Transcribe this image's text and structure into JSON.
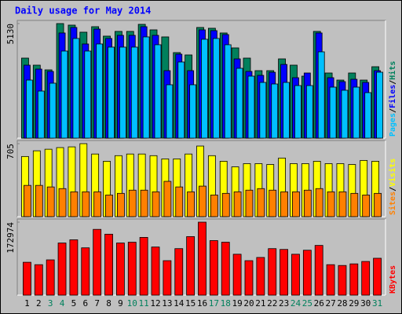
{
  "chart_data": [
    {
      "type": "bar",
      "title": "Daily usage for May 2014",
      "ylim": [
        0,
        5130
      ],
      "yticks": [
        5130
      ],
      "legend_separator": "/",
      "series": [
        {
          "name": "Hits",
          "color": "#00805c",
          "values": [
            3584,
            3268,
            3057,
            5130,
            5060,
            4744,
            4990,
            4568,
            4779,
            4779,
            5095,
            4849,
            4533,
            3830,
            3725,
            4955,
            4920,
            4709,
            4041,
            3584,
            3022,
            3022,
            3549,
            3268,
            2776,
            4779,
            2917,
            2600,
            2917,
            2600,
            3198
          ]
        },
        {
          "name": "Files",
          "color": "#0000ff",
          "values": [
            3268,
            3092,
            2987,
            4709,
            4955,
            4217,
            4884,
            4463,
            4603,
            4603,
            4990,
            4603,
            3022,
            3760,
            3022,
            4849,
            4814,
            4638,
            3549,
            2987,
            2811,
            2950,
            3300,
            2706,
            2917,
            4709,
            2706,
            2530,
            2636,
            2495,
            3022
          ]
        },
        {
          "name": "Pages",
          "color": "#00c0ff",
          "values": [
            2600,
            2108,
            2460,
            3900,
            4463,
            3900,
            4217,
            4076,
            4076,
            4076,
            4533,
            4182,
            2390,
            3409,
            2390,
            4428,
            4463,
            4182,
            3127,
            2776,
            2495,
            2425,
            2495,
            2354,
            2354,
            3865,
            2284,
            2144,
            2284,
            2038,
            2952
          ]
        }
      ]
    },
    {
      "type": "bar",
      "ylim": [
        0,
        705
      ],
      "yticks": [
        705
      ],
      "legend_separator": "/",
      "series": [
        {
          "name": "Visits",
          "color": "#ffff00",
          "values": [
            581,
            636,
            651,
            667,
            674,
            705,
            605,
            535,
            589,
            605,
            605,
            589,
            558,
            558,
            605,
            682,
            589,
            535,
            481,
            512,
            512,
            504,
            566,
            512,
            512,
            535,
            512,
            512,
            504,
            543,
            535
          ]
        },
        {
          "name": "Sites",
          "color": "#ff8000",
          "values": [
            302,
            302,
            287,
            271,
            240,
            240,
            240,
            209,
            225,
            256,
            256,
            240,
            341,
            287,
            240,
            295,
            209,
            225,
            240,
            256,
            271,
            256,
            240,
            240,
            256,
            271,
            240,
            240,
            225,
            209,
            225
          ]
        }
      ]
    },
    {
      "type": "bar",
      "ylim": [
        0,
        172974
      ],
      "yticks": [
        172974
      ],
      "categories": [
        "1",
        "2",
        "3",
        "4",
        "5",
        "6",
        "7",
        "8",
        "9",
        "10",
        "11",
        "12",
        "13",
        "14",
        "15",
        "16",
        "17",
        "18",
        "19",
        "20",
        "21",
        "22",
        "23",
        "24",
        "25",
        "26",
        "27",
        "28",
        "29",
        "30",
        "31"
      ],
      "category_colors": [
        "#000000",
        "#000000",
        "#00805c",
        "#00805c",
        "#000000",
        "#000000",
        "#000000",
        "#000000",
        "#000000",
        "#00805c",
        "#00805c",
        "#000000",
        "#000000",
        "#000000",
        "#000000",
        "#000000",
        "#00805c",
        "#00805c",
        "#000000",
        "#000000",
        "#000000",
        "#000000",
        "#000000",
        "#00805c",
        "#00805c",
        "#000000",
        "#000000",
        "#000000",
        "#000000",
        "#000000",
        "#00805c"
      ],
      "series": [
        {
          "name": "KBytes",
          "color": "#ff0000",
          "values": [
            77941,
            72238,
            83644,
            123565,
            131169,
            112159,
            155882,
            144476,
            123565,
            125466,
            136872,
            114060,
            81743,
            110258,
            138773,
            172974,
            129268,
            125466,
            96951,
            81743,
            89347,
            110258,
            108357,
            96951,
            106456,
            117862,
            72238,
            70337,
            74139,
            79842,
            87446
          ]
        }
      ]
    }
  ]
}
